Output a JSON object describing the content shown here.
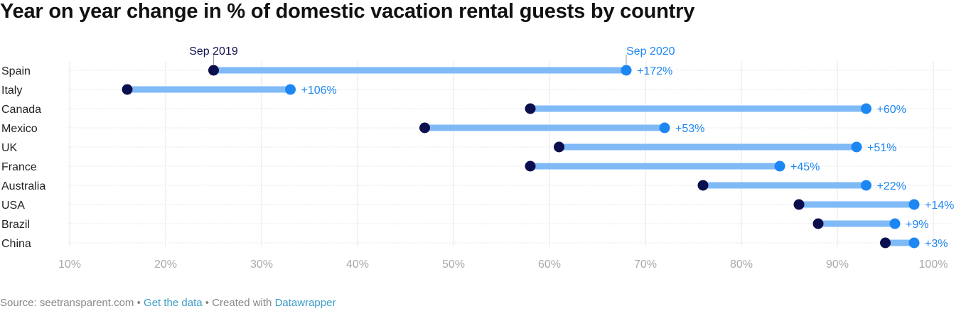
{
  "title": "Year on year change in % of domestic vacation rental guests by country",
  "chart_data": {
    "type": "range-dot",
    "title": "Year on year change in % of domestic vacation rental guests by country",
    "series": [
      {
        "name": "Sep 2019",
        "color": "#0c0f4d"
      },
      {
        "name": "Sep 2020",
        "color": "#1c86f2"
      }
    ],
    "bar_color": "#7fbaf7",
    "categories": [
      "Spain",
      "Italy",
      "Canada",
      "Mexico",
      "UK",
      "France",
      "Australia",
      "USA",
      "Brazil",
      "China"
    ],
    "sep2019": [
      25,
      16,
      58,
      47,
      61,
      58,
      76,
      86,
      88,
      95
    ],
    "sep2020": [
      68,
      33,
      93,
      72,
      92,
      84,
      93,
      98,
      96,
      98
    ],
    "change_labels": [
      "+172%",
      "+106%",
      "+60%",
      "+53%",
      "+51%",
      "+45%",
      "+22%",
      "+14%",
      "+9%",
      "+3%"
    ],
    "xlim": [
      10,
      100
    ],
    "xticks": [
      "10%",
      "20%",
      "30%",
      "40%",
      "50%",
      "60%",
      "70%",
      "80%",
      "90%",
      "100%"
    ],
    "grid": true
  },
  "footer": {
    "source": "Source: seetransparent.com",
    "sep": " • ",
    "get_data": "Get the data",
    "created": "Created with",
    "datawrapper": "Datawrapper"
  }
}
